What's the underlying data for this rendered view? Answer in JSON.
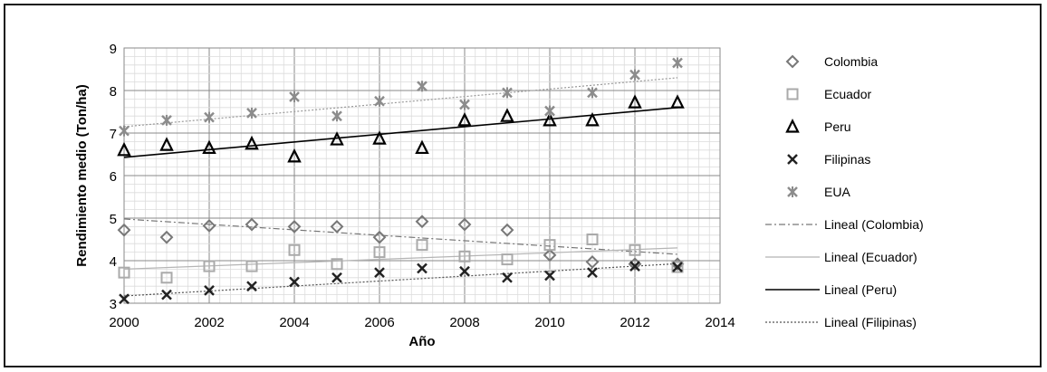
{
  "chart_data": {
    "type": "scatter",
    "xlabel": "Año",
    "ylabel": "Rendimiento medio (Ton/ha)",
    "xlim": [
      2000,
      2014
    ],
    "ylim": [
      3,
      9
    ],
    "xticks": [
      2000,
      2002,
      2004,
      2006,
      2008,
      2010,
      2012,
      2014
    ],
    "yticks": [
      3,
      4,
      5,
      6,
      7,
      8,
      9
    ],
    "grid": true,
    "legend_position": "right",
    "series": [
      {
        "name": "Colombia",
        "marker": "diamond",
        "color": "#777777",
        "x": [
          2000,
          2001,
          2002,
          2003,
          2004,
          2005,
          2006,
          2007,
          2008,
          2009,
          2010,
          2011,
          2012,
          2013
        ],
        "y": [
          4.72,
          4.55,
          4.82,
          4.85,
          4.8,
          4.8,
          4.55,
          4.92,
          4.85,
          4.72,
          4.13,
          3.97,
          3.92,
          3.92
        ]
      },
      {
        "name": "Ecuador",
        "marker": "square",
        "color": "#aaaaaa",
        "x": [
          2000,
          2001,
          2002,
          2003,
          2004,
          2005,
          2006,
          2007,
          2008,
          2009,
          2010,
          2011,
          2012,
          2013
        ],
        "y": [
          3.72,
          3.6,
          3.87,
          3.87,
          4.25,
          3.92,
          4.2,
          4.37,
          4.1,
          4.03,
          4.37,
          4.5,
          4.25,
          3.85
        ]
      },
      {
        "name": "Peru",
        "marker": "triangle",
        "color": "#000000",
        "x": [
          2000,
          2001,
          2002,
          2003,
          2004,
          2005,
          2006,
          2007,
          2008,
          2009,
          2010,
          2011,
          2012,
          2013
        ],
        "y": [
          6.6,
          6.72,
          6.65,
          6.75,
          6.45,
          6.85,
          6.87,
          6.65,
          7.3,
          7.4,
          7.3,
          7.3,
          7.72,
          7.72
        ]
      },
      {
        "name": "Filipinas",
        "marker": "x",
        "color": "#222222",
        "x": [
          2000,
          2001,
          2002,
          2003,
          2004,
          2005,
          2006,
          2007,
          2008,
          2009,
          2010,
          2011,
          2012,
          2013
        ],
        "y": [
          3.1,
          3.2,
          3.3,
          3.4,
          3.5,
          3.6,
          3.72,
          3.82,
          3.75,
          3.6,
          3.65,
          3.72,
          3.87,
          3.85
        ]
      },
      {
        "name": "EUA",
        "marker": "asterisk",
        "color": "#8c8c8c",
        "x": [
          2000,
          2001,
          2002,
          2003,
          2004,
          2005,
          2006,
          2007,
          2008,
          2009,
          2010,
          2011,
          2012,
          2013
        ],
        "y": [
          7.05,
          7.3,
          7.37,
          7.47,
          7.85,
          7.4,
          7.75,
          8.1,
          7.67,
          7.95,
          7.52,
          7.95,
          8.37,
          8.65
        ]
      }
    ],
    "trendlines": [
      {
        "name": "Lineal (Colombia)",
        "style": "dash-dot",
        "color": "#777777",
        "x": [
          2000,
          2013
        ],
        "y": [
          4.98,
          4.15
        ]
      },
      {
        "name": "Lineal (Ecuador)",
        "style": "solid-light",
        "color": "#b5b5b5",
        "x": [
          2000,
          2013
        ],
        "y": [
          3.8,
          4.3
        ]
      },
      {
        "name": "Lineal (Peru)",
        "style": "solid",
        "color": "#000000",
        "x": [
          2000,
          2013
        ],
        "y": [
          6.43,
          7.6
        ]
      },
      {
        "name": "Lineal (Filipinas)",
        "style": "dotted",
        "color": "#555555",
        "x": [
          2000,
          2013
        ],
        "y": [
          3.17,
          3.93
        ]
      },
      {
        "name": "",
        "style": "dotted-light",
        "color": "#9a9a9a",
        "x": [
          2000,
          2013
        ],
        "y": [
          7.15,
          8.3
        ]
      }
    ]
  }
}
